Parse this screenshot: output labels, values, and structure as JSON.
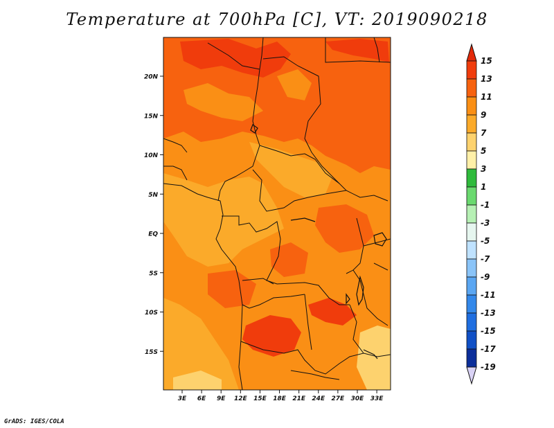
{
  "title": "Temperature at 700hPa [C], VT: 2019090218",
  "credit": "GrADS: IGES/COLA",
  "map": {
    "lat_ticks": [
      {
        "value": 20,
        "label": "20N"
      },
      {
        "value": 15,
        "label": "15N"
      },
      {
        "value": 10,
        "label": "10N"
      },
      {
        "value": 5,
        "label": "5N"
      },
      {
        "value": 0,
        "label": "EQ"
      },
      {
        "value": -5,
        "label": "5S"
      },
      {
        "value": -10,
        "label": "10S"
      },
      {
        "value": -15,
        "label": "15S"
      }
    ],
    "lon_ticks": [
      {
        "value": 3,
        "label": "3E"
      },
      {
        "value": 6,
        "label": "6E"
      },
      {
        "value": 9,
        "label": "9E"
      },
      {
        "value": 12,
        "label": "12E"
      },
      {
        "value": 15,
        "label": "15E"
      },
      {
        "value": 18,
        "label": "18E"
      },
      {
        "value": 21,
        "label": "21E"
      },
      {
        "value": 24,
        "label": "24E"
      },
      {
        "value": 27,
        "label": "27E"
      },
      {
        "value": 30,
        "label": "30E"
      },
      {
        "value": 33,
        "label": "33E"
      }
    ]
  },
  "colorbar": {
    "labels": [
      "15",
      "13",
      "11",
      "9",
      "7",
      "5",
      "3",
      "1",
      "-1",
      "-3",
      "-5",
      "-7",
      "-9",
      "-11",
      "-13",
      "-15",
      "-17",
      "-19"
    ],
    "colors": {
      "above_15": "#e32a0a",
      "13_15": "#f03c0c",
      "11_13": "#f7620f",
      "9_11": "#fa8f15",
      "7_9": "#fbaa2a",
      "5_7": "#fdd26e",
      "3_5": "#fff0a8",
      "1_3": "#2fbb3c",
      "-1_1": "#6ad96f",
      "-3_-1": "#b6f0b4",
      "-5_-3": "#e6f6ef",
      "-7_-5": "#bfe2ff",
      "-9_-7": "#8ac4f8",
      "-11_-9": "#5aa6f2",
      "-13_-11": "#3388ea",
      "-15_-13": "#1f6ee0",
      "-17_-15": "#1050c6",
      "-19_-17": "#0b2e9a",
      "below_-19": "#0a1a6e",
      "min_triangle": "#d9d2f5"
    }
  }
}
